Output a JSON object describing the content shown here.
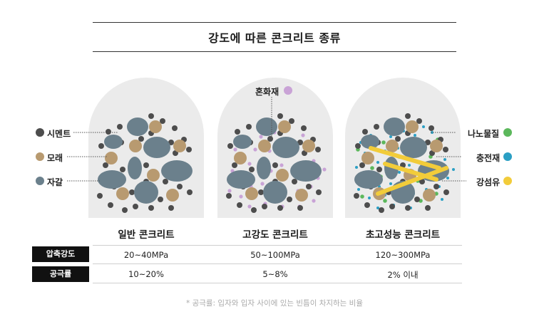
{
  "title": "강도에 따른 콘크리트 종류",
  "legend": {
    "cement": "시멘트",
    "sand": "모래",
    "gravel": "자갈",
    "admixture": "혼화재",
    "nano": "나노물질",
    "filler": "충전재",
    "fiber": "강섬유"
  },
  "colors": {
    "cement": "#4d4d4d",
    "sand": "#b89a70",
    "gravel": "#6b808c",
    "admixture": "#c9a3d6",
    "nano": "#5cb85c",
    "filler": "#2b9fc4",
    "fiber": "#f2cc3a",
    "panel": "#ebebeb"
  },
  "types": [
    {
      "name": "일반 콘크리트",
      "strength": "20~40MPa",
      "porosity": "10~20%"
    },
    {
      "name": "고강도 콘크리트",
      "strength": "50~100MPa",
      "porosity": "5~8%"
    },
    {
      "name": "초고성능 콘크리트",
      "strength": "120~300MPa",
      "porosity": "2% 이내"
    }
  ],
  "rows": {
    "strength": "압축강도",
    "porosity": "공극률"
  },
  "note": "* 공극률: 입자와 입자 사이에 있는 빈틈이 차지하는 비율"
}
